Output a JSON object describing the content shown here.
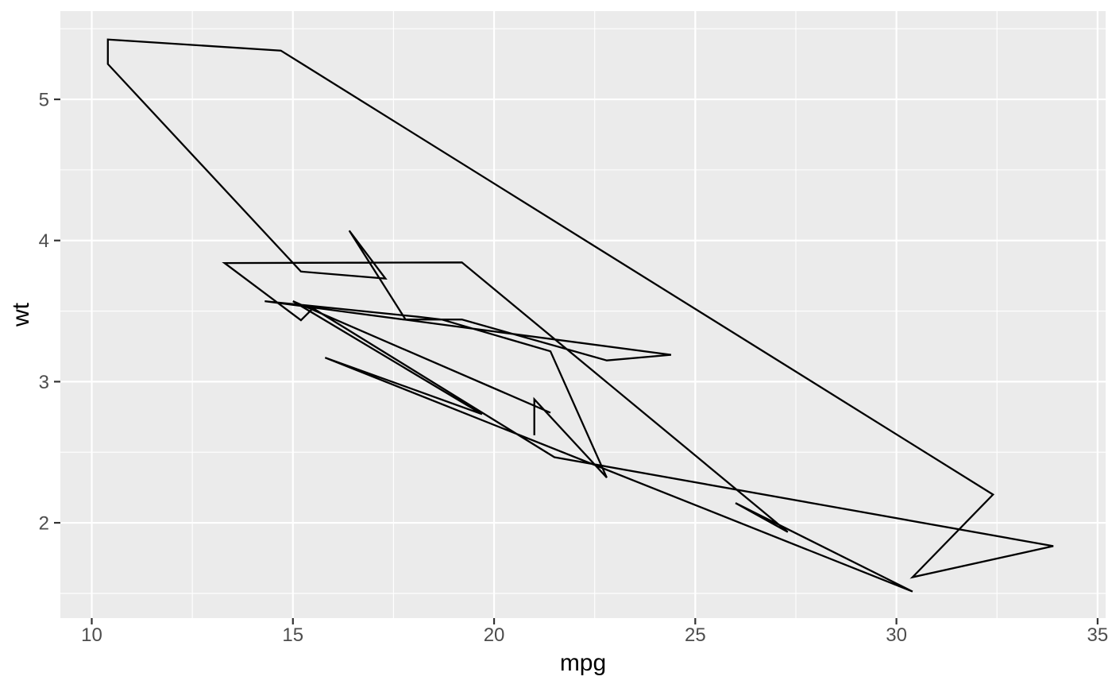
{
  "style": {
    "panel_bg": "#EBEBEB",
    "grid_color": "#FFFFFF",
    "line_color": "#000000",
    "tick_mark_color": "#333333",
    "tick_label_color": "#4D4D4D",
    "axis_title_color": "#000000",
    "outer_bg": "#FFFFFF"
  },
  "chart_data": {
    "type": "line",
    "subtype": "path",
    "title": "",
    "xlabel": "mpg",
    "ylabel": "wt",
    "xlim": [
      9.22,
      35.2
    ],
    "ylim": [
      1.325,
      5.625
    ],
    "x_ticks": [
      10,
      15,
      20,
      25,
      30,
      35
    ],
    "y_ticks": [
      2,
      3,
      4,
      5
    ],
    "x_minor_ticks": [
      12.5,
      17.5,
      22.5,
      27.5,
      32.5
    ],
    "y_minor_ticks": [
      1.5,
      2.5,
      3.5,
      4.5,
      5.5
    ],
    "grid": "major+minor",
    "legend_position": "none",
    "series": [
      {
        "name": "path",
        "points": [
          [
            21.0,
            2.62
          ],
          [
            21.0,
            2.875
          ],
          [
            22.8,
            2.32
          ],
          [
            21.4,
            3.215
          ],
          [
            18.7,
            3.44
          ],
          [
            18.1,
            3.46
          ],
          [
            14.3,
            3.57
          ],
          [
            24.4,
            3.19
          ],
          [
            22.8,
            3.15
          ],
          [
            19.2,
            3.44
          ],
          [
            17.8,
            3.44
          ],
          [
            16.4,
            4.07
          ],
          [
            17.3,
            3.73
          ],
          [
            15.2,
            3.78
          ],
          [
            10.4,
            5.25
          ],
          [
            10.4,
            5.424
          ],
          [
            14.7,
            5.345
          ],
          [
            32.4,
            2.2
          ],
          [
            30.4,
            1.615
          ],
          [
            33.9,
            1.835
          ],
          [
            21.5,
            2.465
          ],
          [
            15.5,
            3.52
          ],
          [
            15.2,
            3.435
          ],
          [
            13.3,
            3.84
          ],
          [
            19.2,
            3.845
          ],
          [
            27.3,
            1.935
          ],
          [
            26.0,
            2.14
          ],
          [
            30.4,
            1.513
          ],
          [
            15.8,
            3.17
          ],
          [
            19.7,
            2.77
          ],
          [
            15.0,
            3.57
          ],
          [
            21.4,
            2.78
          ]
        ]
      }
    ]
  }
}
